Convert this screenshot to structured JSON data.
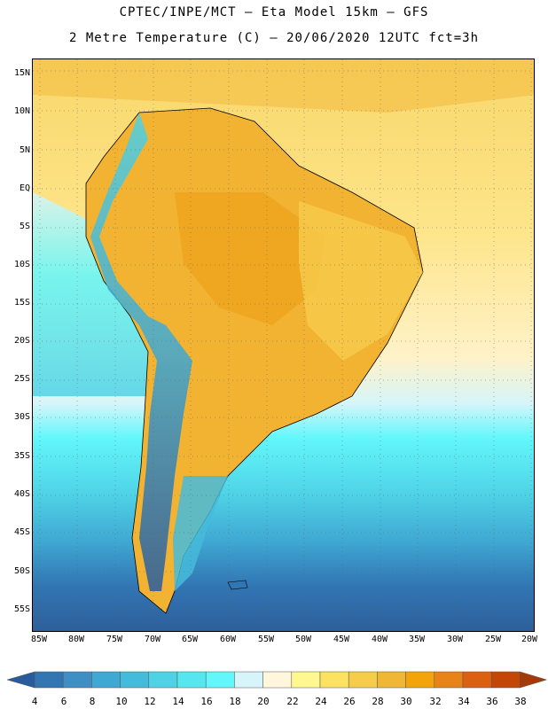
{
  "title": {
    "line1": "CPTEC/INPE/MCT –  Eta Model 15km – GFS",
    "line2": "2 Metre Temperature (C) – 20/06/2020 12UTC fct=3h"
  },
  "map": {
    "lat_labels": [
      "15N",
      "10N",
      "5N",
      "EQ",
      "5S",
      "10S",
      "15S",
      "20S",
      "25S",
      "30S",
      "35S",
      "40S",
      "45S",
      "50S",
      "55S"
    ],
    "lon_labels": [
      "85W",
      "80W",
      "75W",
      "70W",
      "65W",
      "60W",
      "55W",
      "50W",
      "45W",
      "40W",
      "35W",
      "30W",
      "25W",
      "20W"
    ]
  },
  "colorbar": {
    "labels": [
      "4",
      "6",
      "8",
      "10",
      "12",
      "14",
      "16",
      "18",
      "20",
      "22",
      "24",
      "26",
      "28",
      "30",
      "32",
      "34",
      "36",
      "38"
    ],
    "colors": [
      "#2a5b9c",
      "#3175b3",
      "#3f8ec4",
      "#3fa8d3",
      "#45bbdb",
      "#4fd2e6",
      "#55e6f0",
      "#62f7fb",
      "#d6f5fa",
      "#fff6dc",
      "#fff78f",
      "#fde160",
      "#f6cc4b",
      "#efb734",
      "#f2a40a",
      "#e8831a",
      "#dc6012",
      "#c44708",
      "#a53a08"
    ]
  },
  "colors": {
    "ocean_north": "#fde58a",
    "ocean_south": "#2e5f9a",
    "land": "#f2b232"
  }
}
